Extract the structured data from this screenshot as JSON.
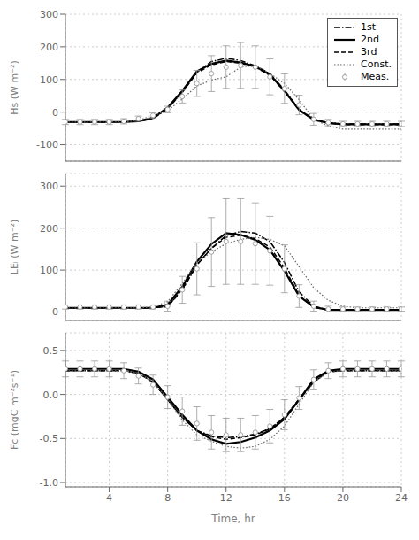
{
  "chart_data": [
    {
      "type": "line",
      "x": [
        1,
        2,
        3,
        4,
        5,
        6,
        7,
        8,
        9,
        10,
        11,
        12,
        13,
        14,
        15,
        16,
        17,
        18,
        19,
        20,
        21,
        22,
        23,
        24
      ],
      "xlim": [
        1,
        24
      ],
      "xticks": [
        4,
        8,
        12,
        16,
        20,
        24
      ],
      "ylabel": "Hs (W m⁻²)",
      "ylim": [
        -150,
        300
      ],
      "yticks": [
        -100,
        0,
        100,
        200,
        300
      ],
      "grid": true,
      "legend": "upper right",
      "tick_labels": "y",
      "series": [
        {
          "name": "1st",
          "color": "#000000",
          "line_style": "dashdot",
          "values": [
            -30,
            -30,
            -30,
            -30,
            -30,
            -28,
            -20,
            10,
            62,
            122,
            155,
            165,
            158,
            142,
            118,
            68,
            8,
            -22,
            -32,
            -36,
            -36,
            -36,
            -36,
            -36
          ]
        },
        {
          "name": "2nd",
          "color": "#000000",
          "line_style": "solid",
          "values": [
            -30,
            -30,
            -30,
            -30,
            -30,
            -28,
            -18,
            14,
            65,
            125,
            148,
            158,
            152,
            140,
            115,
            65,
            7,
            -23,
            -33,
            -37,
            -37,
            -37,
            -37,
            -37
          ]
        },
        {
          "name": "3rd",
          "color": "#000000",
          "line_style": "dashed",
          "values": [
            -30,
            -30,
            -30,
            -30,
            -30,
            -27,
            -16,
            11,
            60,
            120,
            145,
            155,
            150,
            138,
            113,
            63,
            6,
            -24,
            -34,
            -38,
            -38,
            -38,
            -38,
            -38
          ]
        },
        {
          "name": "Const.",
          "color": "#666666",
          "line_style": "dotted",
          "values": [
            -30,
            -30,
            -30,
            -30,
            -30,
            -25,
            -10,
            5,
            40,
            80,
            98,
            108,
            138,
            143,
            118,
            88,
            38,
            -22,
            -42,
            -52,
            -52,
            -52,
            -52,
            -52
          ]
        },
        {
          "name": "Meas.",
          "color": "#999999",
          "line_style": "none",
          "marker": "circle",
          "values": [
            -30,
            -30,
            -30,
            -30,
            -28,
            -20,
            -10,
            8,
            48,
            88,
            118,
            138,
            143,
            138,
            108,
            72,
            22,
            -22,
            -32,
            -36,
            -36,
            -36,
            -36,
            -36
          ],
          "errors": [
            8,
            8,
            8,
            8,
            8,
            8,
            8,
            10,
            20,
            40,
            55,
            65,
            70,
            65,
            55,
            45,
            30,
            18,
            10,
            8,
            8,
            8,
            8,
            8
          ]
        }
      ]
    },
    {
      "type": "line",
      "x": [
        1,
        2,
        3,
        4,
        5,
        6,
        7,
        8,
        9,
        10,
        11,
        12,
        13,
        14,
        15,
        16,
        17,
        18,
        19,
        20,
        21,
        22,
        23,
        24
      ],
      "xlim": [
        1,
        24
      ],
      "xticks": [
        4,
        8,
        12,
        16,
        20,
        24
      ],
      "ylabel": "LEᵢ (W m⁻²)",
      "ylim": [
        -20,
        330
      ],
      "yticks": [
        0,
        100,
        200,
        300
      ],
      "grid": true,
      "tick_labels": "y",
      "series": [
        {
          "name": "1st",
          "color": "#000000",
          "line_style": "dashdot",
          "values": [
            10,
            10,
            10,
            10,
            10,
            10,
            10,
            14,
            52,
            112,
            152,
            182,
            192,
            188,
            168,
            118,
            48,
            14,
            5,
            5,
            5,
            5,
            5,
            5
          ]
        },
        {
          "name": "2nd",
          "color": "#000000",
          "line_style": "solid",
          "values": [
            10,
            10,
            10,
            10,
            10,
            10,
            10,
            18,
            60,
            120,
            162,
            188,
            184,
            172,
            148,
            98,
            38,
            12,
            5,
            5,
            5,
            5,
            5,
            5
          ]
        },
        {
          "name": "3rd",
          "color": "#000000",
          "line_style": "dashed",
          "values": [
            10,
            10,
            10,
            10,
            10,
            10,
            10,
            13,
            54,
            113,
            152,
            178,
            183,
            175,
            155,
            105,
            40,
            11,
            5,
            5,
            5,
            5,
            5,
            5
          ]
        },
        {
          "name": "Const.",
          "color": "#666666",
          "line_style": "dotted",
          "values": [
            10,
            10,
            10,
            10,
            10,
            10,
            12,
            25,
            68,
            118,
            143,
            163,
            173,
            178,
            173,
            158,
            108,
            58,
            28,
            14,
            10,
            10,
            10,
            10
          ]
        },
        {
          "name": "Meas.",
          "color": "#999999",
          "line_style": "none",
          "marker": "circle",
          "values": [
            12,
            12,
            12,
            12,
            12,
            12,
            12,
            14,
            53,
            103,
            143,
            168,
            168,
            163,
            146,
            103,
            38,
            14,
            7,
            7,
            7,
            7,
            7,
            7
          ],
          "errors": [
            5,
            5,
            5,
            5,
            5,
            5,
            5,
            12,
            32,
            62,
            82,
            102,
            102,
            97,
            82,
            57,
            27,
            12,
            7,
            5,
            5,
            5,
            5,
            5
          ]
        }
      ]
    },
    {
      "type": "line",
      "x": [
        1,
        2,
        3,
        4,
        5,
        6,
        7,
        8,
        9,
        10,
        11,
        12,
        13,
        14,
        15,
        16,
        17,
        18,
        19,
        20,
        21,
        22,
        23,
        24
      ],
      "xlim": [
        1,
        24
      ],
      "xticks": [
        4,
        8,
        12,
        16,
        20,
        24
      ],
      "xlabel": "Time, hr",
      "ylabel": "Fc (mgC m⁻²s⁻¹)",
      "ylim": [
        -1.05,
        0.7
      ],
      "yticks": [
        {
          "value": -1.0,
          "label": "-1.0"
        },
        {
          "value": -0.5,
          "label": "-0.5"
        },
        {
          "value": 0.0,
          "label": "0.0"
        },
        {
          "value": 0.5,
          "label": "0.5"
        }
      ],
      "grid": true,
      "series": [
        {
          "name": "1st",
          "color": "#000000",
          "line_style": "dashdot",
          "values": [
            0.27,
            0.27,
            0.27,
            0.27,
            0.27,
            0.24,
            0.14,
            -0.06,
            -0.26,
            -0.41,
            -0.47,
            -0.49,
            -0.48,
            -0.45,
            -0.39,
            -0.26,
            -0.06,
            0.14,
            0.26,
            0.27,
            0.27,
            0.27,
            0.27,
            0.27
          ]
        },
        {
          "name": "2nd",
          "color": "#000000",
          "line_style": "solid",
          "values": [
            0.29,
            0.29,
            0.29,
            0.29,
            0.29,
            0.26,
            0.17,
            -0.03,
            -0.23,
            -0.41,
            -0.51,
            -0.56,
            -0.54,
            -0.49,
            -0.41,
            -0.28,
            -0.06,
            0.17,
            0.27,
            0.29,
            0.29,
            0.29,
            0.29,
            0.29
          ]
        },
        {
          "name": "3rd",
          "color": "#000000",
          "line_style": "dashed",
          "values": [
            0.27,
            0.27,
            0.27,
            0.27,
            0.27,
            0.24,
            0.14,
            -0.06,
            -0.26,
            -0.41,
            -0.48,
            -0.51,
            -0.49,
            -0.46,
            -0.39,
            -0.26,
            -0.05,
            0.15,
            0.26,
            0.27,
            0.27,
            0.27,
            0.27,
            0.27
          ]
        },
        {
          "name": "Const.",
          "color": "#666666",
          "line_style": "dotted",
          "values": [
            0.27,
            0.27,
            0.27,
            0.27,
            0.27,
            0.24,
            0.14,
            -0.06,
            -0.29,
            -0.46,
            -0.53,
            -0.59,
            -0.61,
            -0.59,
            -0.51,
            -0.36,
            -0.11,
            0.14,
            0.25,
            0.27,
            0.27,
            0.27,
            0.27,
            0.27
          ]
        },
        {
          "name": "Meas.",
          "color": "#999999",
          "line_style": "none",
          "marker": "circle",
          "values": [
            0.29,
            0.29,
            0.29,
            0.29,
            0.27,
            0.21,
            0.11,
            -0.03,
            -0.19,
            -0.33,
            -0.43,
            -0.46,
            -0.46,
            -0.43,
            -0.36,
            -0.23,
            -0.04,
            0.17,
            0.27,
            0.29,
            0.29,
            0.29,
            0.29,
            0.29
          ],
          "errors": [
            0.09,
            0.09,
            0.09,
            0.09,
            0.09,
            0.09,
            0.11,
            0.13,
            0.16,
            0.19,
            0.19,
            0.19,
            0.19,
            0.19,
            0.19,
            0.17,
            0.13,
            0.11,
            0.09,
            0.09,
            0.09,
            0.09,
            0.09,
            0.09
          ]
        }
      ]
    }
  ]
}
